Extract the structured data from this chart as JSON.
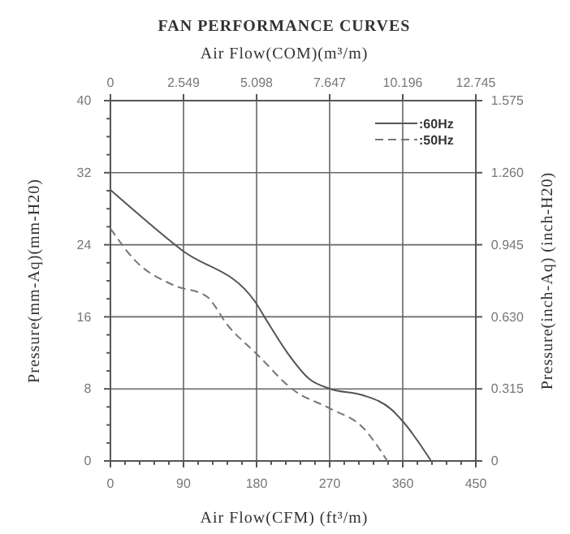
{
  "chart_data": {
    "type": "line",
    "title": "FAN PERFORMANCE CURVES",
    "x2label": "Air Flow(COM)(m³/m)",
    "xlabel": "Air Flow(CFM) (ft³/m)",
    "ylabel": "Pressure(mm-Aq)(mm-H20)",
    "y2label": "Pressure(inch-Aq) (inch-H20)",
    "xlim": [
      0,
      450
    ],
    "xticks": [
      0,
      {
        "value": 18,
        "label": null
      },
      {
        "value": 36,
        "label": null
      },
      {
        "value": 54,
        "label": null
      },
      {
        "value": 72,
        "label": null
      },
      90,
      {
        "value": 108,
        "label": null
      },
      {
        "value": 126,
        "label": null
      },
      {
        "value": 144,
        "label": null
      },
      {
        "value": 162,
        "label": null
      },
      180,
      {
        "value": 198,
        "label": null
      },
      {
        "value": 216,
        "label": null
      },
      {
        "value": 234,
        "label": null
      },
      {
        "value": 252,
        "label": null
      },
      270,
      {
        "value": 288,
        "label": null
      },
      {
        "value": 306,
        "label": null
      },
      {
        "value": 324,
        "label": null
      },
      {
        "value": 342,
        "label": null
      },
      360,
      {
        "value": 378,
        "label": null
      },
      {
        "value": 396,
        "label": null
      },
      {
        "value": 414,
        "label": null
      },
      {
        "value": 432,
        "label": null
      },
      450
    ],
    "ylim": [
      0,
      40
    ],
    "yticks": [
      0,
      {
        "value": 2,
        "label": null
      },
      {
        "value": 4,
        "label": null
      },
      {
        "value": 6,
        "label": null
      },
      8,
      {
        "value": 10,
        "label": null
      },
      {
        "value": 12,
        "label": null
      },
      {
        "value": 14,
        "label": null
      },
      16,
      {
        "value": 18,
        "label": null
      },
      {
        "value": 20,
        "label": null
      },
      {
        "value": 22,
        "label": null
      },
      24,
      {
        "value": 26,
        "label": null
      },
      {
        "value": 28,
        "label": null
      },
      {
        "value": 30,
        "label": null
      },
      32,
      {
        "value": 34,
        "label": null
      },
      {
        "value": 36,
        "label": null
      },
      {
        "value": 38,
        "label": null
      },
      40
    ],
    "x2lim": [
      0,
      12.745
    ],
    "x2ticks": [
      0,
      2.549,
      5.098,
      7.647,
      10.196,
      12.745
    ],
    "y2lim": [
      0,
      1.575
    ],
    "y2ticks": [
      0,
      0.315,
      {
        "value": 0.63,
        "label": "0.630"
      },
      0.945,
      {
        "value": 1.26,
        "label": "1.260"
      },
      1.575
    ],
    "grid": true,
    "legend": "top right",
    "series": [
      {
        "name": ":60Hz",
        "color": "#555555",
        "line_style": "solid",
        "x": [
          0,
          88,
          178,
          191,
          218,
          245,
          271,
          311,
          345,
          361,
          395
        ],
        "values": [
          30.1,
          23.4,
          17.7,
          15.8,
          12.0,
          9.1,
          8.0,
          7.3,
          5.8,
          4.3,
          0
        ]
      },
      {
        "name": ":50Hz",
        "color": "#777777",
        "line_style": "dashed",
        "x": [
          0,
          31,
          78,
          118,
          145,
          181,
          225,
          271,
          311,
          341
        ],
        "values": [
          25.8,
          22.2,
          19.5,
          18.3,
          15.0,
          11.8,
          7.9,
          5.8,
          3.7,
          0
        ]
      }
    ]
  }
}
